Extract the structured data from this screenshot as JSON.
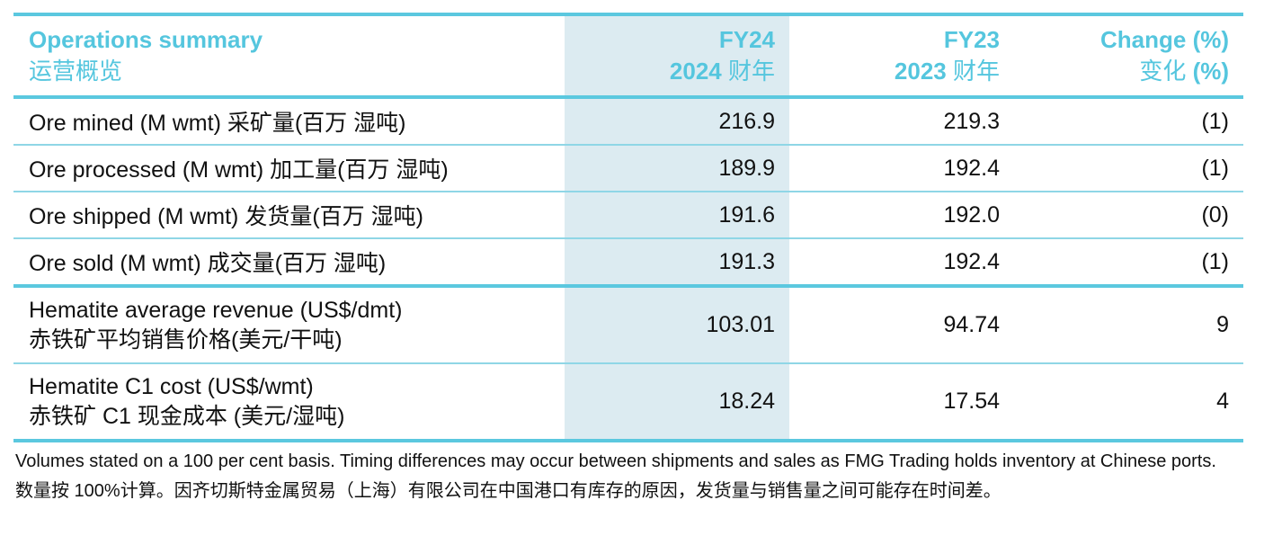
{
  "header": {
    "title_en": "Operations summary",
    "title_cn": "运营概览",
    "fy24_en": "FY24",
    "fy24_year": "2024",
    "fy24_cn": "财年",
    "fy23_en": "FY23",
    "fy23_year": "2023",
    "fy23_cn": "财年",
    "change_en": "Change (%)",
    "change_cn": "变化",
    "change_cn_pct": "(%)"
  },
  "rows": [
    {
      "label": "Ore mined (M wmt) 采矿量(百万 湿吨)",
      "fy24": "216.9",
      "fy23": "219.3",
      "change": "(1)"
    },
    {
      "label": "Ore processed (M wmt) 加工量(百万 湿吨)",
      "fy24": "189.9",
      "fy23": "192.4",
      "change": "(1)"
    },
    {
      "label": "Ore shipped (M wmt) 发货量(百万 湿吨)",
      "fy24": "191.6",
      "fy23": "192.0",
      "change": "(0)"
    },
    {
      "label": "Ore sold (M wmt) 成交量(百万 湿吨)",
      "fy24": "191.3",
      "fy23": "192.4",
      "change": "(1)"
    }
  ],
  "rows2": [
    {
      "label_en": "Hematite average revenue (US$/dmt)",
      "label_cn": "赤铁矿平均销售价格(美元/干吨)",
      "fy24": "103.01",
      "fy23": "94.74",
      "change": "9"
    },
    {
      "label_en": "Hematite C1 cost (US$/wmt)",
      "label_cn": "赤铁矿 C1 现金成本 (美元/湿吨)",
      "fy24": "18.24",
      "fy23": "17.54",
      "change": "4"
    }
  ],
  "footnote": {
    "en": "Volumes stated on a 100 per cent basis. Timing differences may occur between shipments and sales as FMG Trading holds inventory at Chinese ports.",
    "cn": "数量按 100%计算。因齐切斯特金属贸易（上海）有限公司在中国港口有库存的原因，发货量与销售量之间可能存在时间差。"
  },
  "colors": {
    "accent": "#55c6de",
    "rule": "#5bc8df",
    "shade": "#dcebf1"
  }
}
